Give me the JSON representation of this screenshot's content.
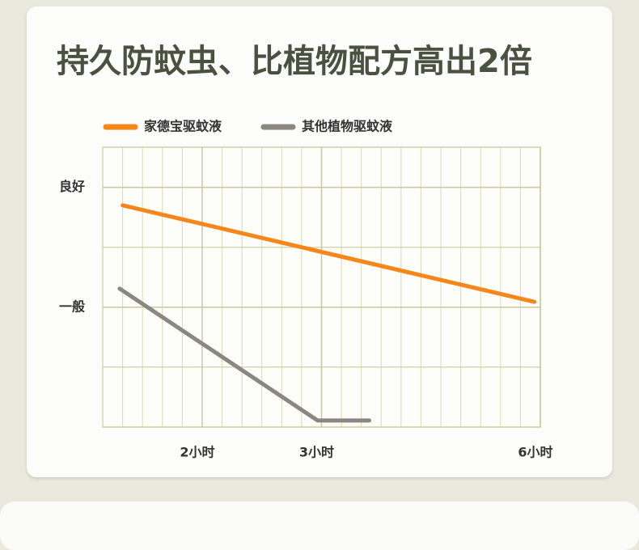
{
  "chart_data": {
    "type": "line",
    "title": "持久防蚊虫、比植物配方高出2倍",
    "xlim": [
      0,
      22
    ],
    "xticks": [
      {
        "value": 5,
        "label": "2小时"
      },
      {
        "value": 11,
        "label": "3小时"
      },
      {
        "value": 22,
        "label": "6小时"
      }
    ],
    "ylim": [
      0,
      4.67
    ],
    "yticks": [
      {
        "value": 2,
        "label": "一般"
      },
      {
        "value": 4,
        "label": "良好"
      }
    ],
    "grid": true,
    "series": [
      {
        "name": "家德宝驱蚊液",
        "color": "#f5861a",
        "x": [
          1,
          21.7
        ],
        "values": [
          3.7,
          2.09
        ]
      },
      {
        "name": "其他植物驱蚊液",
        "color": "#8c8680",
        "x": [
          0.85,
          10.8,
          13.4
        ],
        "values": [
          2.31,
          0.11,
          0.11
        ]
      }
    ]
  }
}
